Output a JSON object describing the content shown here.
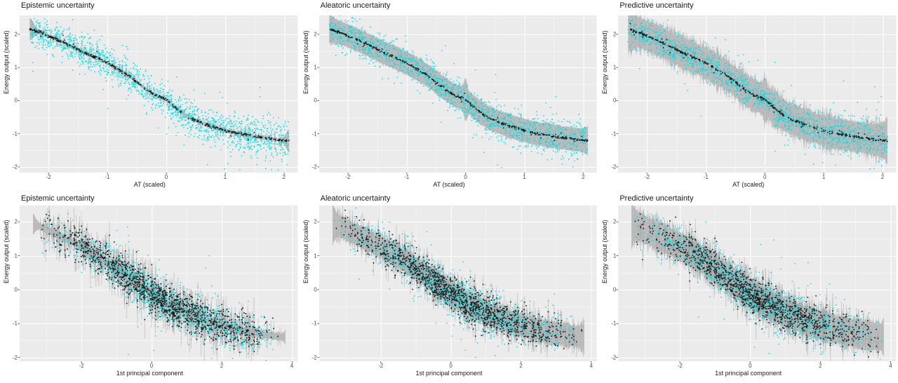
{
  "figure_title": "",
  "colors": {
    "panel_background": "#EBEBEB",
    "grid_major": "#FFFFFF",
    "grid_minor": "#FFFFFF",
    "observations": "#00E0E6",
    "mean_points": "#111111",
    "ribbon": "#9C9C9C",
    "tick_text": "#4d4d4d",
    "title_text": "#1a1a1a",
    "tick_mark": "#333333"
  },
  "chart_data": [
    {
      "id": "epistemic-at",
      "type": "scatter",
      "title": "Epistemic uncertainty",
      "xlabel": "AT (scaled)",
      "ylabel": "Energy output (scaled)",
      "xlim": [
        -2.49,
        2.23
      ],
      "ylim": [
        -2.17,
        2.57
      ],
      "xticks": [
        -2,
        -1,
        0,
        1,
        2
      ],
      "yticks": [
        -2,
        -1,
        0,
        1,
        2
      ],
      "x_range": [
        -2.32,
        2.08
      ],
      "series": [
        {
          "name": "observations",
          "type": "points",
          "color": "#00E0E6",
          "n": 1600,
          "noise_sd": 0.23
        },
        {
          "name": "mean prediction",
          "type": "points",
          "color": "#111111",
          "n": 380,
          "noise_sd": 0.02
        },
        {
          "name": "uncertainty band",
          "type": "ribbon",
          "color": "#9C9C9C",
          "band": {
            "base_half_width": 0.04,
            "roughness": 0.02,
            "spike_prob": 0.07,
            "spike_max": 0.38,
            "end_cap": 0.28,
            "zero_spike": 0
          },
          "error_bar_prob": 0.35,
          "error_bar_max": 0.18
        }
      ],
      "mean_curve": [
        [
          -2.3,
          2.15
        ],
        [
          -2.1,
          2.03
        ],
        [
          -2.0,
          1.95
        ],
        [
          -1.8,
          1.8
        ],
        [
          -1.6,
          1.63
        ],
        [
          -1.4,
          1.45
        ],
        [
          -1.2,
          1.3
        ],
        [
          -1.0,
          1.13
        ],
        [
          -0.8,
          0.93
        ],
        [
          -0.6,
          0.7
        ],
        [
          -0.4,
          0.42
        ],
        [
          -0.2,
          0.17
        ],
        [
          -0.05,
          0.07
        ],
        [
          0.0,
          0.03
        ],
        [
          0.08,
          -0.1
        ],
        [
          0.2,
          -0.28
        ],
        [
          0.35,
          -0.47
        ],
        [
          0.5,
          -0.6
        ],
        [
          0.7,
          -0.74
        ],
        [
          0.9,
          -0.85
        ],
        [
          1.1,
          -0.95
        ],
        [
          1.3,
          -1.02
        ],
        [
          1.5,
          -1.08
        ],
        [
          1.7,
          -1.13
        ],
        [
          1.9,
          -1.18
        ],
        [
          2.1,
          -1.21
        ]
      ]
    },
    {
      "id": "aleatoric-at",
      "type": "scatter",
      "title": "Aleatoric uncertainty",
      "xlabel": "AT (scaled)",
      "ylabel": "Energy output (scaled)",
      "xlim": [
        -2.49,
        2.23
      ],
      "ylim": [
        -2.17,
        2.57
      ],
      "xticks": [
        -2,
        -1,
        0,
        1,
        2
      ],
      "yticks": [
        -2,
        -1,
        0,
        1,
        2
      ],
      "x_range": [
        -2.32,
        2.08
      ],
      "series": [
        {
          "name": "observations",
          "type": "points",
          "color": "#00E0E6",
          "n": 1600,
          "noise_sd": 0.23
        },
        {
          "name": "mean prediction",
          "type": "points",
          "color": "#111111",
          "n": 380,
          "noise_sd": 0.02
        },
        {
          "name": "uncertainty band",
          "type": "ribbon",
          "color": "#9C9C9C",
          "band": {
            "base_half_width": 0.33,
            "roughness": 0.03,
            "spike_prob": 0.02,
            "spike_max": 0.12,
            "end_cap": 0.08,
            "zero_spike": 0.3
          },
          "error_bar_prob": 0.1,
          "error_bar_max": 0.06
        }
      ],
      "mean_curve": [
        [
          -2.3,
          2.15
        ],
        [
          -2.1,
          2.03
        ],
        [
          -2.0,
          1.95
        ],
        [
          -1.8,
          1.8
        ],
        [
          -1.6,
          1.63
        ],
        [
          -1.4,
          1.45
        ],
        [
          -1.2,
          1.3
        ],
        [
          -1.0,
          1.13
        ],
        [
          -0.8,
          0.93
        ],
        [
          -0.6,
          0.7
        ],
        [
          -0.4,
          0.42
        ],
        [
          -0.2,
          0.17
        ],
        [
          -0.05,
          0.07
        ],
        [
          0.0,
          0.03
        ],
        [
          0.08,
          -0.1
        ],
        [
          0.2,
          -0.28
        ],
        [
          0.35,
          -0.47
        ],
        [
          0.5,
          -0.6
        ],
        [
          0.7,
          -0.74
        ],
        [
          0.9,
          -0.85
        ],
        [
          1.1,
          -0.95
        ],
        [
          1.3,
          -1.02
        ],
        [
          1.5,
          -1.08
        ],
        [
          1.7,
          -1.13
        ],
        [
          1.9,
          -1.18
        ],
        [
          2.1,
          -1.21
        ]
      ]
    },
    {
      "id": "predictive-at",
      "type": "scatter",
      "title": "Predictive uncertainty",
      "xlabel": "AT (scaled)",
      "ylabel": "Energy output (scaled)",
      "xlim": [
        -2.49,
        2.23
      ],
      "ylim": [
        -2.17,
        2.57
      ],
      "xticks": [
        -2,
        -1,
        0,
        1,
        2
      ],
      "yticks": [
        -2,
        -1,
        0,
        1,
        2
      ],
      "x_range": [
        -2.32,
        2.08
      ],
      "series": [
        {
          "name": "observations",
          "type": "points",
          "color": "#00E0E6",
          "n": 1600,
          "noise_sd": 0.23
        },
        {
          "name": "mean prediction",
          "type": "points",
          "color": "#111111",
          "n": 380,
          "noise_sd": 0.02
        },
        {
          "name": "uncertainty band",
          "type": "ribbon",
          "color": "#9C9C9C",
          "band": {
            "base_half_width": 0.42,
            "roughness": 0.07,
            "spike_prob": 0.3,
            "spike_max": 0.28,
            "end_cap": 0.18,
            "zero_spike": 0.22
          },
          "error_bar_prob": 0.45,
          "error_bar_max": 0.2
        }
      ],
      "mean_curve": [
        [
          -2.3,
          2.15
        ],
        [
          -2.1,
          2.03
        ],
        [
          -2.0,
          1.95
        ],
        [
          -1.8,
          1.8
        ],
        [
          -1.6,
          1.63
        ],
        [
          -1.4,
          1.45
        ],
        [
          -1.2,
          1.3
        ],
        [
          -1.0,
          1.13
        ],
        [
          -0.8,
          0.93
        ],
        [
          -0.6,
          0.7
        ],
        [
          -0.4,
          0.42
        ],
        [
          -0.2,
          0.17
        ],
        [
          -0.05,
          0.07
        ],
        [
          0.0,
          0.03
        ],
        [
          0.08,
          -0.1
        ],
        [
          0.2,
          -0.28
        ],
        [
          0.35,
          -0.47
        ],
        [
          0.5,
          -0.6
        ],
        [
          0.7,
          -0.74
        ],
        [
          0.9,
          -0.85
        ],
        [
          1.1,
          -0.95
        ],
        [
          1.3,
          -1.02
        ],
        [
          1.5,
          -1.08
        ],
        [
          1.7,
          -1.13
        ],
        [
          1.9,
          -1.18
        ],
        [
          2.1,
          -1.21
        ]
      ]
    },
    {
      "id": "epistemic-pc1",
      "type": "scatter",
      "title": "Epistemic uncertainty",
      "xlabel": "1st principal component",
      "ylabel": "Energy output (scaled)",
      "xlim": [
        -3.76,
        4.16
      ],
      "ylim": [
        -2.11,
        2.48
      ],
      "xticks": [
        -2,
        0,
        2,
        4
      ],
      "yticks": [
        -2,
        -1,
        0,
        1,
        2
      ],
      "x_range": [
        -3.38,
        3.82
      ],
      "series": [
        {
          "name": "observations",
          "type": "points",
          "color": "#00E0E6",
          "n": 1300,
          "noise_sd": 0.3
        },
        {
          "name": "mean prediction",
          "type": "points",
          "color": "#111111",
          "n": 1300,
          "noise_sd": 0.26
        },
        {
          "name": "uncertainty band",
          "type": "ribbon",
          "color": "#9C9C9C",
          "band": {
            "base_half_width": 0.07,
            "roughness": 0.05,
            "spike_prob": 0.2,
            "spike_max": 0.5,
            "end_cap": 0.22,
            "zero_spike": 0
          },
          "error_bar_prob": 0.55,
          "error_bar_max": 0.55
        }
      ],
      "mean_curve": [
        [
          -3.4,
          1.95
        ],
        [
          -3.2,
          1.88
        ],
        [
          -3.0,
          1.78
        ],
        [
          -2.7,
          1.62
        ],
        [
          -2.4,
          1.47
        ],
        [
          -2.1,
          1.32
        ],
        [
          -1.8,
          1.15
        ],
        [
          -1.5,
          0.97
        ],
        [
          -1.2,
          0.76
        ],
        [
          -0.9,
          0.55
        ],
        [
          -0.6,
          0.33
        ],
        [
          -0.3,
          0.1
        ],
        [
          0.0,
          -0.12
        ],
        [
          0.3,
          -0.3
        ],
        [
          0.6,
          -0.47
        ],
        [
          0.9,
          -0.62
        ],
        [
          1.2,
          -0.76
        ],
        [
          1.5,
          -0.88
        ],
        [
          1.8,
          -0.99
        ],
        [
          2.1,
          -1.08
        ],
        [
          2.4,
          -1.16
        ],
        [
          2.7,
          -1.23
        ],
        [
          3.0,
          -1.29
        ],
        [
          3.3,
          -1.34
        ],
        [
          3.6,
          -1.38
        ],
        [
          3.8,
          -1.4
        ]
      ]
    },
    {
      "id": "aleatoric-pc1",
      "type": "scatter",
      "title": "Aleatoric uncertainty",
      "xlabel": "1st principal component",
      "ylabel": "Energy output (scaled)",
      "xlim": [
        -3.76,
        4.16
      ],
      "ylim": [
        -2.11,
        2.48
      ],
      "xticks": [
        -2,
        0,
        2,
        4
      ],
      "yticks": [
        -2,
        -1,
        0,
        1,
        2
      ],
      "x_range": [
        -3.38,
        3.82
      ],
      "series": [
        {
          "name": "observations",
          "type": "points",
          "color": "#00E0E6",
          "n": 1300,
          "noise_sd": 0.3
        },
        {
          "name": "mean prediction",
          "type": "points",
          "color": "#111111",
          "n": 1300,
          "noise_sd": 0.26
        },
        {
          "name": "uncertainty band",
          "type": "ribbon",
          "color": "#9C9C9C",
          "band": {
            "base_half_width": 0.28,
            "roughness": 0.08,
            "spike_prob": 0.15,
            "spike_max": 0.25,
            "end_cap": 0.22,
            "zero_spike": 0
          },
          "error_bar_prob": 0.5,
          "error_bar_max": 0.45
        }
      ],
      "mean_curve": [
        [
          -3.4,
          1.95
        ],
        [
          -3.2,
          1.88
        ],
        [
          -3.0,
          1.78
        ],
        [
          -2.7,
          1.62
        ],
        [
          -2.4,
          1.47
        ],
        [
          -2.1,
          1.32
        ],
        [
          -1.8,
          1.15
        ],
        [
          -1.5,
          0.97
        ],
        [
          -1.2,
          0.76
        ],
        [
          -0.9,
          0.55
        ],
        [
          -0.6,
          0.33
        ],
        [
          -0.3,
          0.1
        ],
        [
          0.0,
          -0.12
        ],
        [
          0.3,
          -0.3
        ],
        [
          0.6,
          -0.47
        ],
        [
          0.9,
          -0.62
        ],
        [
          1.2,
          -0.76
        ],
        [
          1.5,
          -0.88
        ],
        [
          1.8,
          -0.99
        ],
        [
          2.1,
          -1.08
        ],
        [
          2.4,
          -1.16
        ],
        [
          2.7,
          -1.23
        ],
        [
          3.0,
          -1.29
        ],
        [
          3.3,
          -1.34
        ],
        [
          3.6,
          -1.38
        ],
        [
          3.8,
          -1.4
        ]
      ]
    },
    {
      "id": "predictive-pc1",
      "type": "scatter",
      "title": "Predictive uncertainty",
      "xlabel": "1st principal component",
      "ylabel": "Energy output (scaled)",
      "xlim": [
        -3.76,
        4.16
      ],
      "ylim": [
        -2.11,
        2.48
      ],
      "xticks": [
        -2,
        0,
        2,
        4
      ],
      "yticks": [
        -2,
        -1,
        0,
        1,
        2
      ],
      "x_range": [
        -3.38,
        3.82
      ],
      "series": [
        {
          "name": "observations",
          "type": "points",
          "color": "#00E0E6",
          "n": 1300,
          "noise_sd": 0.3
        },
        {
          "name": "mean prediction",
          "type": "points",
          "color": "#111111",
          "n": 1300,
          "noise_sd": 0.26
        },
        {
          "name": "uncertainty band",
          "type": "ribbon",
          "color": "#9C9C9C",
          "band": {
            "base_half_width": 0.36,
            "roughness": 0.09,
            "spike_prob": 0.2,
            "spike_max": 0.28,
            "end_cap": 0.22,
            "zero_spike": 0
          },
          "error_bar_prob": 0.55,
          "error_bar_max": 0.5
        }
      ],
      "mean_curve": [
        [
          -3.4,
          1.95
        ],
        [
          -3.2,
          1.88
        ],
        [
          -3.0,
          1.78
        ],
        [
          -2.7,
          1.62
        ],
        [
          -2.4,
          1.47
        ],
        [
          -2.1,
          1.32
        ],
        [
          -1.8,
          1.15
        ],
        [
          -1.5,
          0.97
        ],
        [
          -1.2,
          0.76
        ],
        [
          -0.9,
          0.55
        ],
        [
          -0.6,
          0.33
        ],
        [
          -0.3,
          0.1
        ],
        [
          0.0,
          -0.12
        ],
        [
          0.3,
          -0.3
        ],
        [
          0.6,
          -0.47
        ],
        [
          0.9,
          -0.62
        ],
        [
          1.2,
          -0.76
        ],
        [
          1.5,
          -0.88
        ],
        [
          1.8,
          -0.99
        ],
        [
          2.1,
          -1.08
        ],
        [
          2.4,
          -1.16
        ],
        [
          2.7,
          -1.23
        ],
        [
          3.0,
          -1.29
        ],
        [
          3.3,
          -1.34
        ],
        [
          3.6,
          -1.38
        ],
        [
          3.8,
          -1.4
        ]
      ]
    }
  ]
}
